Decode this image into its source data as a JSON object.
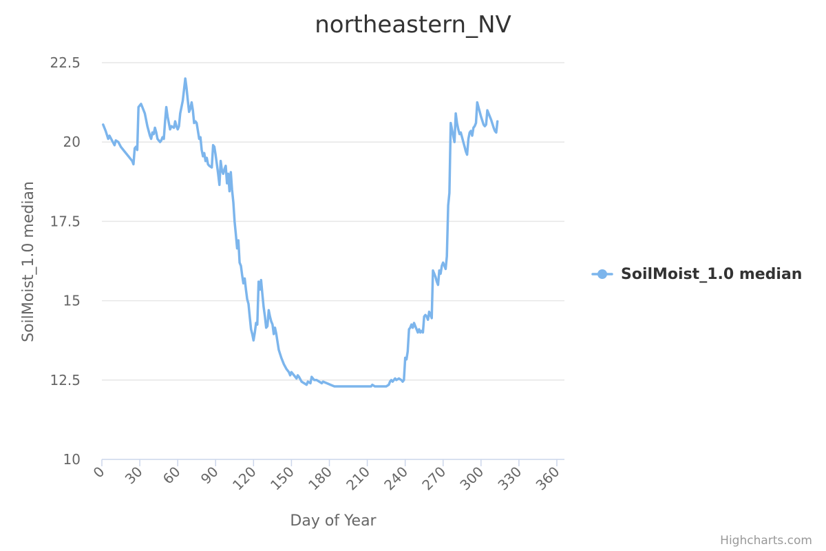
{
  "chart_data": {
    "type": "line",
    "title": "northeastern_NV",
    "xlabel": "Day of Year",
    "ylabel": "SoilMoist_1.0 median",
    "xlim": [
      0,
      366
    ],
    "ylim": [
      10,
      22.5
    ],
    "x_ticks": [
      0,
      30,
      60,
      90,
      120,
      150,
      180,
      210,
      240,
      270,
      300,
      330,
      360
    ],
    "y_ticks": [
      10,
      12.5,
      15,
      17.5,
      20,
      22.5
    ],
    "y_tick_labels": [
      "10",
      "12.5",
      "15",
      "17.5",
      "20",
      "22.5"
    ],
    "grid": true,
    "legend_position": "right",
    "series": [
      {
        "name": "SoilMoist_1.0 median",
        "color": "#7cb5ec",
        "points": [
          [
            1,
            20.55
          ],
          [
            3,
            20.35
          ],
          [
            5,
            20.1
          ],
          [
            6,
            20.2
          ],
          [
            8,
            20.05
          ],
          [
            10,
            19.9
          ],
          [
            11,
            20.05
          ],
          [
            13,
            20.0
          ],
          [
            15,
            19.85
          ],
          [
            18,
            19.7
          ],
          [
            21,
            19.55
          ],
          [
            24,
            19.4
          ],
          [
            25,
            19.3
          ],
          [
            26,
            19.8
          ],
          [
            27,
            19.85
          ],
          [
            28,
            19.75
          ],
          [
            29,
            21.1
          ],
          [
            31,
            21.2
          ],
          [
            32,
            21.1
          ],
          [
            34,
            20.9
          ],
          [
            36,
            20.5
          ],
          [
            38,
            20.2
          ],
          [
            39,
            20.1
          ],
          [
            40,
            20.3
          ],
          [
            41,
            20.25
          ],
          [
            42,
            20.45
          ],
          [
            43,
            20.3
          ],
          [
            44,
            20.1
          ],
          [
            46,
            20.0
          ],
          [
            47,
            20.05
          ],
          [
            48,
            20.15
          ],
          [
            49,
            20.1
          ],
          [
            50,
            20.65
          ],
          [
            51,
            21.1
          ],
          [
            52,
            20.8
          ],
          [
            54,
            20.4
          ],
          [
            55,
            20.5
          ],
          [
            57,
            20.45
          ],
          [
            58,
            20.65
          ],
          [
            59,
            20.5
          ],
          [
            60,
            20.4
          ],
          [
            61,
            20.5
          ],
          [
            62,
            20.9
          ],
          [
            64,
            21.3
          ],
          [
            66,
            22.0
          ],
          [
            67,
            21.7
          ],
          [
            68,
            21.3
          ],
          [
            69,
            20.95
          ],
          [
            70,
            21.05
          ],
          [
            71,
            21.25
          ],
          [
            72,
            21.0
          ],
          [
            73,
            20.6
          ],
          [
            74,
            20.65
          ],
          [
            75,
            20.6
          ],
          [
            77,
            20.1
          ],
          [
            78,
            20.15
          ],
          [
            79,
            19.75
          ],
          [
            80,
            19.55
          ],
          [
            81,
            19.65
          ],
          [
            82,
            19.4
          ],
          [
            83,
            19.5
          ],
          [
            84,
            19.3
          ],
          [
            85,
            19.25
          ],
          [
            87,
            19.2
          ],
          [
            88,
            19.9
          ],
          [
            89,
            19.85
          ],
          [
            90,
            19.6
          ],
          [
            92,
            19.0
          ],
          [
            93,
            18.65
          ],
          [
            94,
            19.4
          ],
          [
            95,
            19.1
          ],
          [
            96,
            19.0
          ],
          [
            97,
            19.15
          ],
          [
            98,
            19.25
          ],
          [
            99,
            18.7
          ],
          [
            100,
            19.0
          ],
          [
            101,
            18.45
          ],
          [
            102,
            19.05
          ],
          [
            103,
            18.5
          ],
          [
            104,
            18.1
          ],
          [
            105,
            17.5
          ],
          [
            106,
            17.1
          ],
          [
            107,
            16.65
          ],
          [
            108,
            16.9
          ],
          [
            109,
            16.2
          ],
          [
            110,
            16.1
          ],
          [
            111,
            15.8
          ],
          [
            112,
            15.55
          ],
          [
            113,
            15.7
          ],
          [
            114,
            15.35
          ],
          [
            115,
            15.05
          ],
          [
            116,
            14.9
          ],
          [
            117,
            14.5
          ],
          [
            118,
            14.1
          ],
          [
            119,
            13.95
          ],
          [
            120,
            13.75
          ],
          [
            121,
            14.0
          ],
          [
            122,
            14.3
          ],
          [
            123,
            14.25
          ],
          [
            124,
            15.6
          ],
          [
            125,
            15.35
          ],
          [
            126,
            15.65
          ],
          [
            127,
            15.2
          ],
          [
            128,
            14.8
          ],
          [
            129,
            14.5
          ],
          [
            130,
            14.15
          ],
          [
            131,
            14.2
          ],
          [
            132,
            14.7
          ],
          [
            133,
            14.5
          ],
          [
            134,
            14.35
          ],
          [
            135,
            14.25
          ],
          [
            136,
            13.95
          ],
          [
            137,
            14.15
          ],
          [
            138,
            13.95
          ],
          [
            140,
            13.45
          ],
          [
            142,
            13.2
          ],
          [
            144,
            13.0
          ],
          [
            146,
            12.85
          ],
          [
            148,
            12.75
          ],
          [
            149,
            12.65
          ],
          [
            150,
            12.75
          ],
          [
            152,
            12.65
          ],
          [
            154,
            12.55
          ],
          [
            155,
            12.65
          ],
          [
            156,
            12.6
          ],
          [
            158,
            12.45
          ],
          [
            160,
            12.4
          ],
          [
            162,
            12.35
          ],
          [
            163,
            12.45
          ],
          [
            165,
            12.4
          ],
          [
            166,
            12.6
          ],
          [
            168,
            12.5
          ],
          [
            170,
            12.5
          ],
          [
            172,
            12.45
          ],
          [
            174,
            12.4
          ],
          [
            175,
            12.45
          ],
          [
            178,
            12.4
          ],
          [
            181,
            12.35
          ],
          [
            184,
            12.3
          ],
          [
            190,
            12.3
          ],
          [
            200,
            12.3
          ],
          [
            210,
            12.3
          ],
          [
            213,
            12.3
          ],
          [
            214,
            12.35
          ],
          [
            216,
            12.3
          ],
          [
            220,
            12.3
          ],
          [
            225,
            12.3
          ],
          [
            227,
            12.35
          ],
          [
            228,
            12.45
          ],
          [
            229,
            12.5
          ],
          [
            230,
            12.45
          ],
          [
            232,
            12.55
          ],
          [
            233,
            12.5
          ],
          [
            235,
            12.55
          ],
          [
            237,
            12.5
          ],
          [
            238,
            12.45
          ],
          [
            239,
            12.5
          ],
          [
            240,
            13.2
          ],
          [
            241,
            13.15
          ],
          [
            242,
            13.4
          ],
          [
            243,
            14.1
          ],
          [
            244,
            14.15
          ],
          [
            245,
            14.25
          ],
          [
            246,
            14.15
          ],
          [
            247,
            14.3
          ],
          [
            248,
            14.2
          ],
          [
            249,
            14.1
          ],
          [
            250,
            14.0
          ],
          [
            251,
            14.1
          ],
          [
            252,
            14.0
          ],
          [
            253,
            14.05
          ],
          [
            254,
            14.0
          ],
          [
            255,
            14.5
          ],
          [
            256,
            14.55
          ],
          [
            257,
            14.5
          ],
          [
            258,
            14.4
          ],
          [
            259,
            14.65
          ],
          [
            260,
            14.55
          ],
          [
            261,
            14.45
          ],
          [
            262,
            15.95
          ],
          [
            263,
            15.85
          ],
          [
            264,
            15.75
          ],
          [
            265,
            15.6
          ],
          [
            266,
            15.5
          ],
          [
            267,
            15.95
          ],
          [
            268,
            15.85
          ],
          [
            269,
            16.1
          ],
          [
            270,
            16.2
          ],
          [
            271,
            16.1
          ],
          [
            272,
            16.0
          ],
          [
            273,
            16.4
          ],
          [
            274,
            18.0
          ],
          [
            275,
            18.4
          ],
          [
            276,
            20.6
          ],
          [
            277,
            20.4
          ],
          [
            278,
            20.2
          ],
          [
            279,
            20.0
          ],
          [
            280,
            20.9
          ],
          [
            281,
            20.6
          ],
          [
            282,
            20.4
          ],
          [
            283,
            20.25
          ],
          [
            284,
            20.3
          ],
          [
            285,
            20.15
          ],
          [
            286,
            20.0
          ],
          [
            287,
            19.85
          ],
          [
            288,
            19.7
          ],
          [
            289,
            19.6
          ],
          [
            290,
            20.1
          ],
          [
            291,
            20.3
          ],
          [
            292,
            20.35
          ],
          [
            293,
            20.2
          ],
          [
            294,
            20.45
          ],
          [
            295,
            20.5
          ],
          [
            296,
            20.6
          ],
          [
            297,
            21.25
          ],
          [
            298,
            21.1
          ],
          [
            300,
            20.8
          ],
          [
            302,
            20.55
          ],
          [
            303,
            20.5
          ],
          [
            304,
            20.55
          ],
          [
            305,
            21.0
          ],
          [
            306,
            20.9
          ],
          [
            308,
            20.7
          ],
          [
            310,
            20.45
          ],
          [
            311,
            20.35
          ],
          [
            312,
            20.3
          ],
          [
            313,
            20.65
          ]
        ]
      }
    ]
  },
  "legend": {
    "label": "SoilMoist_1.0 median"
  },
  "credits": "Highcharts.com"
}
